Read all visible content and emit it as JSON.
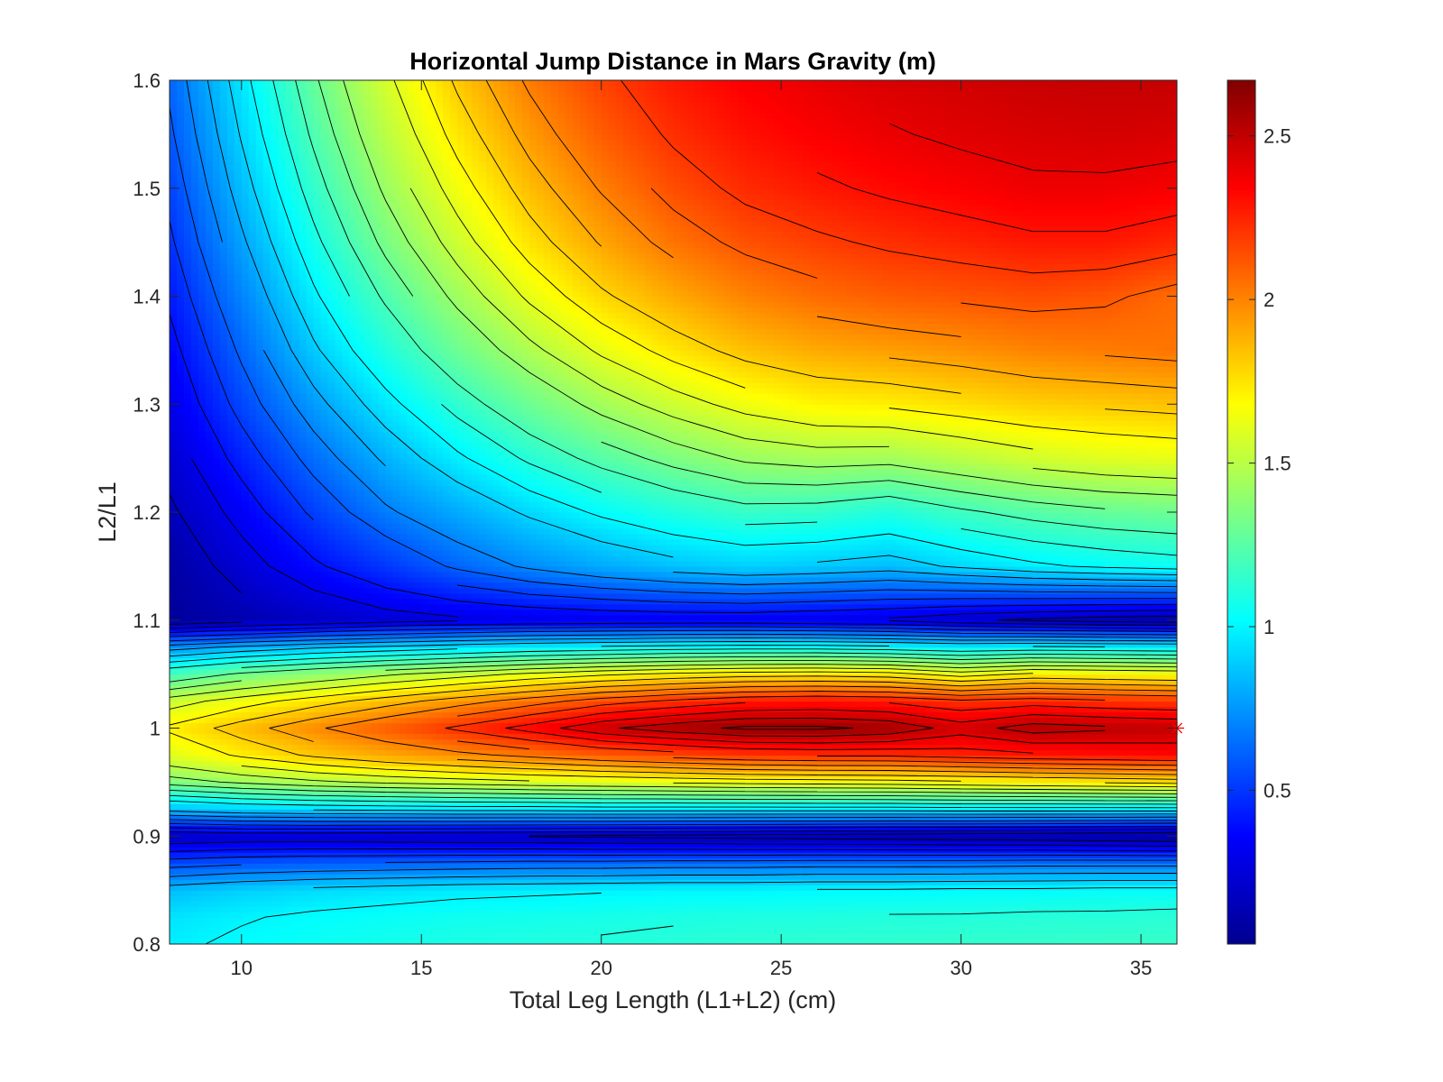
{
  "chart_data": {
    "type": "heatmap",
    "title": "Horizontal Jump Distance in Mars Gravity (m)",
    "xlabel": "Total Leg Length (L1+L2) (cm)",
    "ylabel": "L2/L1",
    "xlim": [
      8,
      36
    ],
    "ylim": [
      0.8,
      1.6
    ],
    "xticks": [
      10,
      15,
      20,
      25,
      30,
      35
    ],
    "yticks": [
      0.8,
      0.9,
      1,
      1.1,
      1.2,
      1.3,
      1.4,
      1.5,
      1.6
    ],
    "xtick_labels": [
      "10",
      "15",
      "20",
      "25",
      "30",
      "35"
    ],
    "ytick_labels": [
      "0.8",
      "0.9",
      "1",
      "1.1",
      "1.2",
      "1.3",
      "1.4",
      "1.5",
      "1.6"
    ],
    "colormap": "jet",
    "clim": [
      0.03,
      2.67
    ],
    "colorbar_ticks": [
      0.5,
      1,
      1.5,
      2,
      2.5
    ],
    "colorbar_tick_labels": [
      "0.5",
      "1",
      "1.5",
      "2",
      "2.5"
    ],
    "contour_lines": true,
    "contour_color": "#000000",
    "grid": false,
    "x": [
      8,
      10,
      12,
      14,
      16,
      18,
      20,
      22,
      24,
      26,
      28,
      30,
      32,
      34,
      36
    ],
    "y": [
      0.8,
      0.825,
      0.85,
      0.875,
      0.9,
      0.925,
      0.95,
      0.975,
      1.0,
      1.025,
      1.05,
      1.075,
      1.1,
      1.15,
      1.2,
      1.25,
      1.3,
      1.35,
      1.4,
      1.45,
      1.5,
      1.55,
      1.6
    ],
    "z": [
      [
        0.98,
        1.02,
        1.05,
        1.07,
        1.09,
        1.1,
        1.11,
        1.12,
        1.13,
        1.14,
        1.14,
        1.15,
        1.15,
        1.16,
        1.16
      ],
      [
        0.95,
        0.99,
        1.02,
        1.04,
        1.06,
        1.07,
        1.08,
        1.09,
        1.1,
        1.1,
        1.11,
        1.11,
        1.12,
        1.12,
        1.13
      ],
      [
        0.85,
        0.9,
        0.93,
        0.95,
        0.97,
        0.98,
        0.99,
        1.0,
        1.0,
        1.01,
        1.01,
        1.02,
        1.02,
        1.03,
        1.03
      ],
      [
        0.55,
        0.58,
        0.6,
        0.61,
        0.62,
        0.63,
        0.63,
        0.64,
        0.64,
        0.65,
        0.65,
        0.65,
        0.66,
        0.66,
        0.66
      ],
      [
        0.2,
        0.22,
        0.22,
        0.21,
        0.2,
        0.19,
        0.18,
        0.17,
        0.16,
        0.15,
        0.14,
        0.13,
        0.12,
        0.1,
        0.08
      ],
      [
        0.85,
        0.9,
        0.92,
        0.93,
        0.94,
        0.94,
        0.95,
        0.95,
        0.95,
        0.95,
        0.95,
        0.96,
        0.96,
        0.96,
        0.96
      ],
      [
        1.35,
        1.42,
        1.48,
        1.52,
        1.55,
        1.58,
        1.6,
        1.62,
        1.64,
        1.65,
        1.66,
        1.68,
        1.7,
        1.72,
        1.74
      ],
      [
        1.6,
        1.72,
        1.82,
        1.9,
        1.97,
        2.03,
        2.1,
        2.15,
        2.2,
        2.22,
        2.22,
        2.25,
        2.28,
        2.3,
        2.32
      ],
      [
        1.72,
        1.85,
        1.98,
        2.1,
        2.22,
        2.34,
        2.48,
        2.56,
        2.62,
        2.62,
        2.58,
        2.45,
        2.55,
        2.52,
        2.5
      ],
      [
        1.55,
        1.65,
        1.75,
        1.85,
        1.95,
        2.05,
        2.15,
        2.22,
        2.28,
        2.3,
        2.28,
        2.22,
        2.25,
        2.22,
        2.2
      ],
      [
        1.2,
        1.32,
        1.4,
        1.48,
        1.55,
        1.62,
        1.68,
        1.72,
        1.75,
        1.76,
        1.74,
        1.65,
        1.72,
        1.7,
        1.68
      ],
      [
        0.75,
        0.82,
        0.88,
        0.92,
        0.96,
        1.0,
        1.02,
        1.04,
        1.05,
        1.05,
        1.03,
        1.0,
        1.02,
        1.01,
        1.0
      ],
      [
        0.1,
        0.15,
        0.2,
        0.25,
        0.28,
        0.3,
        0.31,
        0.32,
        0.32,
        0.3,
        0.28,
        0.22,
        0.18,
        0.15,
        0.13
      ],
      [
        0.12,
        0.25,
        0.38,
        0.5,
        0.62,
        0.72,
        0.8,
        0.86,
        0.9,
        0.88,
        0.85,
        0.92,
        0.98,
        1.02,
        1.05
      ],
      [
        0.18,
        0.34,
        0.52,
        0.68,
        0.8,
        0.92,
        1.02,
        1.1,
        1.16,
        1.15,
        1.1,
        1.18,
        1.24,
        1.28,
        1.3
      ],
      [
        0.24,
        0.44,
        0.64,
        0.82,
        0.98,
        1.12,
        1.24,
        1.34,
        1.42,
        1.45,
        1.44,
        1.5,
        1.56,
        1.6,
        1.62
      ],
      [
        0.3,
        0.54,
        0.76,
        0.96,
        1.14,
        1.3,
        1.44,
        1.55,
        1.64,
        1.7,
        1.72,
        1.76,
        1.8,
        1.82,
        1.84
      ],
      [
        0.36,
        0.62,
        0.88,
        1.1,
        1.3,
        1.47,
        1.62,
        1.74,
        1.84,
        1.9,
        1.93,
        1.96,
        2.0,
        2.02,
        2.04
      ],
      [
        0.42,
        0.7,
        0.98,
        1.22,
        1.43,
        1.62,
        1.78,
        1.9,
        2.0,
        2.06,
        2.1,
        2.12,
        2.14,
        2.12,
        2.06
      ],
      [
        0.48,
        0.78,
        1.07,
        1.33,
        1.55,
        1.75,
        1.91,
        2.04,
        2.13,
        2.18,
        2.22,
        2.25,
        2.28,
        2.28,
        2.24
      ],
      [
        0.53,
        0.85,
        1.15,
        1.42,
        1.65,
        1.85,
        2.01,
        2.14,
        2.23,
        2.28,
        2.32,
        2.35,
        2.38,
        2.38,
        2.36
      ],
      [
        0.58,
        0.91,
        1.22,
        1.5,
        1.74,
        1.94,
        2.1,
        2.22,
        2.3,
        2.35,
        2.39,
        2.42,
        2.44,
        2.45,
        2.44
      ],
      [
        0.62,
        0.96,
        1.28,
        1.57,
        1.82,
        2.02,
        2.17,
        2.28,
        2.35,
        2.4,
        2.44,
        2.46,
        2.48,
        2.49,
        2.49
      ]
    ],
    "marker": {
      "x": 36,
      "y": 1.0,
      "symbol": "asterisk",
      "color": "#ff0000"
    }
  }
}
